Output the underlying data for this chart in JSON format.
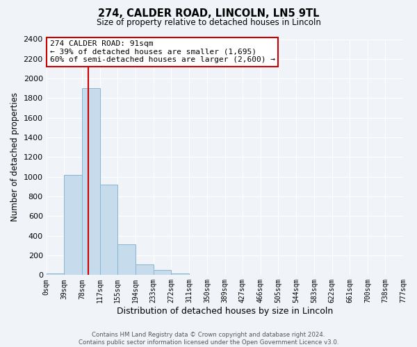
{
  "title": "274, CALDER ROAD, LINCOLN, LN5 9TL",
  "subtitle": "Size of property relative to detached houses in Lincoln",
  "xlabel": "Distribution of detached houses by size in Lincoln",
  "ylabel": "Number of detached properties",
  "bin_edges": [
    0,
    39,
    78,
    117,
    155,
    194,
    233,
    272,
    311,
    350,
    389,
    427,
    466,
    505,
    544,
    583,
    622,
    661,
    700,
    738,
    777
  ],
  "bin_labels": [
    "0sqm",
    "39sqm",
    "78sqm",
    "117sqm",
    "155sqm",
    "194sqm",
    "233sqm",
    "272sqm",
    "311sqm",
    "350sqm",
    "389sqm",
    "427sqm",
    "466sqm",
    "505sqm",
    "544sqm",
    "583sqm",
    "622sqm",
    "661sqm",
    "700sqm",
    "738sqm",
    "777sqm"
  ],
  "counts": [
    20,
    1020,
    1900,
    920,
    310,
    105,
    50,
    20,
    0,
    0,
    0,
    0,
    0,
    0,
    0,
    0,
    0,
    0,
    0,
    0
  ],
  "bar_color": "#c6dcec",
  "bar_edge_color": "#8ab4d0",
  "property_line_x": 91,
  "property_line_color": "#cc0000",
  "ylim": [
    0,
    2400
  ],
  "yticks": [
    0,
    200,
    400,
    600,
    800,
    1000,
    1200,
    1400,
    1600,
    1800,
    2000,
    2200,
    2400
  ],
  "annotation_line1": "274 CALDER ROAD: 91sqm",
  "annotation_line2": "← 39% of detached houses are smaller (1,695)",
  "annotation_line3": "60% of semi-detached houses are larger (2,600) →",
  "footer_line1": "Contains HM Land Registry data © Crown copyright and database right 2024.",
  "footer_line2": "Contains public sector information licensed under the Open Government Licence v3.0.",
  "bg_color": "#f0f4f8",
  "grid_color": "#ffffff",
  "ann_box_color": "#cc0000",
  "ann_box_facecolor": "#ffffff"
}
